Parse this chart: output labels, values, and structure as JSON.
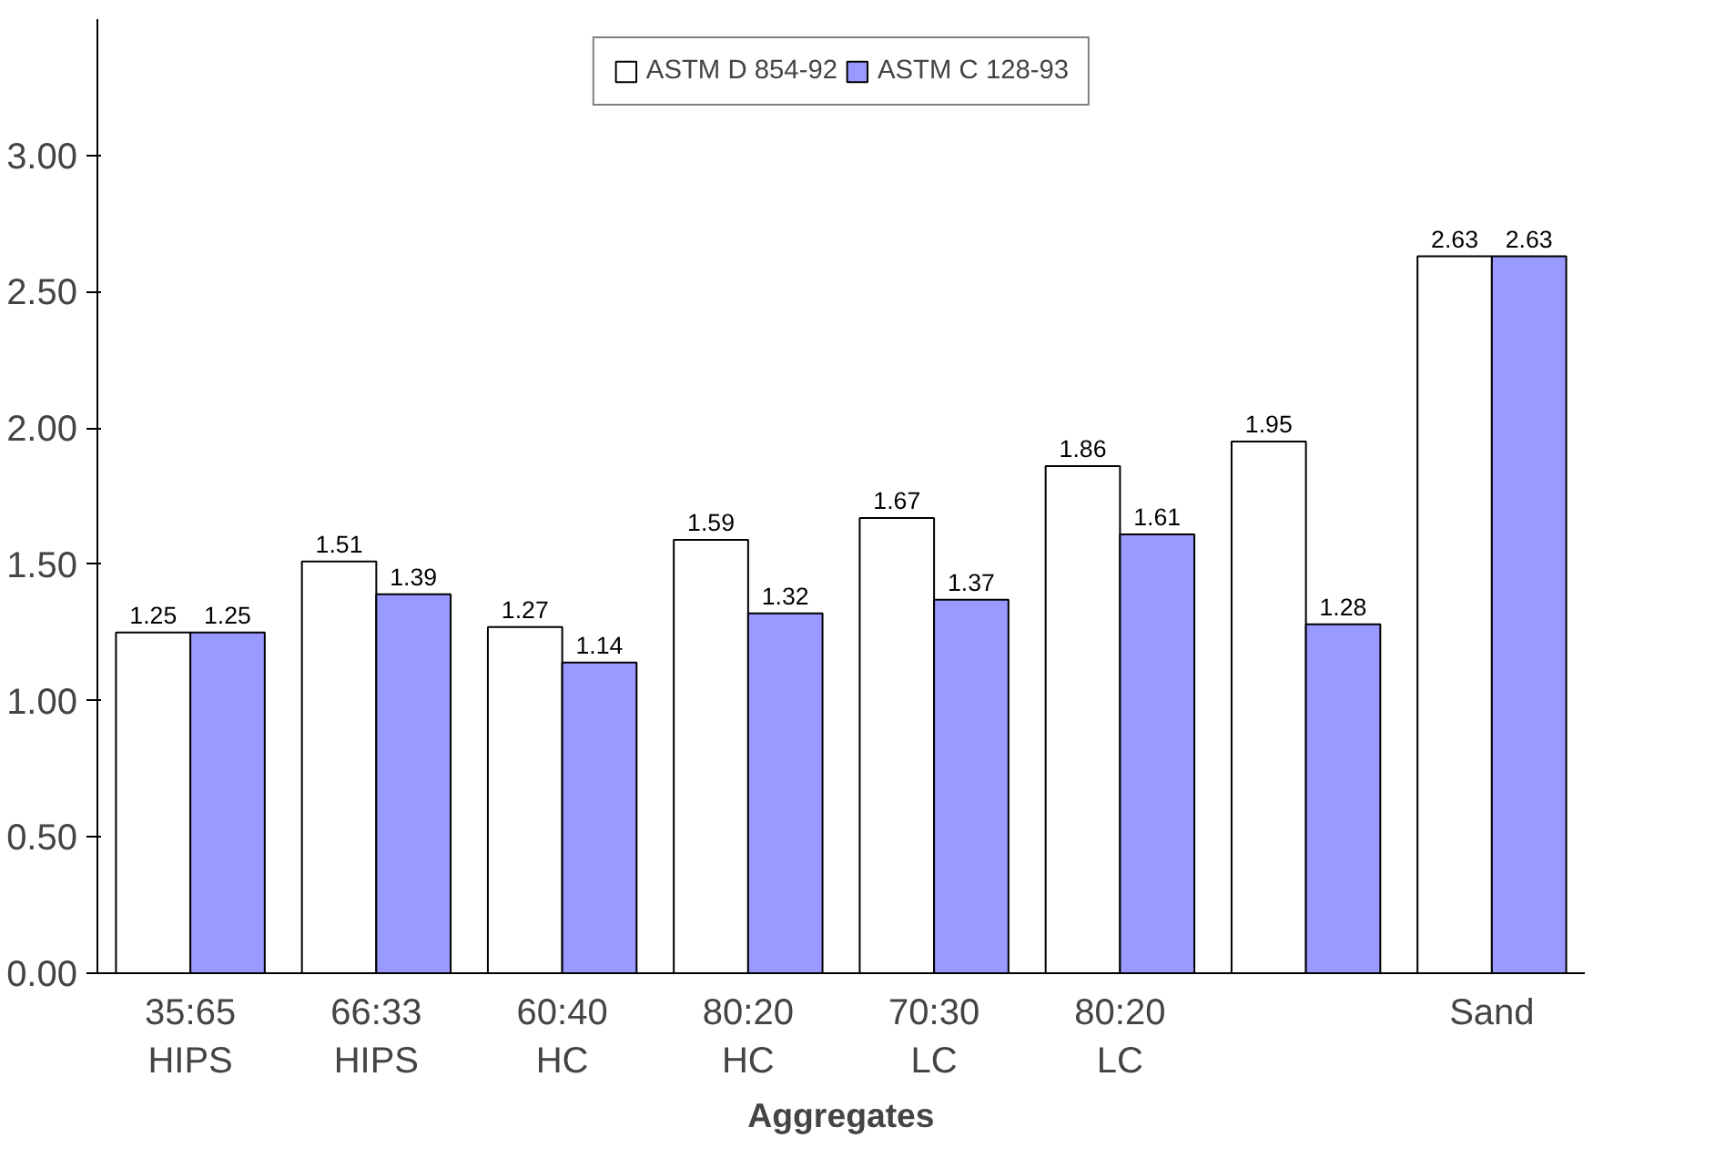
{
  "chart_data": {
    "type": "bar",
    "xlabel": "Aggregates",
    "categories": [
      "35:65\nHIPS",
      "66:33\nHIPS",
      "60:40\nHC",
      "80:20\nHC",
      "70:30\nLC",
      "80:20\nLC",
      null,
      "Sand"
    ],
    "series": [
      {
        "name": "ASTM D 854-92",
        "color": "#ffffff",
        "values": [
          1.25,
          1.51,
          1.27,
          1.59,
          1.67,
          1.86,
          1.95,
          2.63
        ]
      },
      {
        "name": "ASTM C 128-93",
        "color": "#9999ff",
        "values": [
          1.25,
          1.39,
          1.14,
          1.32,
          1.37,
          1.61,
          1.28,
          2.63
        ]
      }
    ],
    "ylim": [
      0,
      3.5
    ],
    "yticks": [
      {
        "value": 0,
        "label": "0.00"
      },
      {
        "value": 0.5,
        "label": "0.50"
      },
      {
        "value": 1,
        "label": "1.00"
      },
      {
        "value": 1.5,
        "label": "1.50"
      },
      {
        "value": 2,
        "label": "2.00"
      },
      {
        "value": 2.5,
        "label": "2.50"
      },
      {
        "value": 3,
        "label": "3.00"
      }
    ],
    "data_labels": true,
    "grid": false,
    "legend": "top"
  }
}
